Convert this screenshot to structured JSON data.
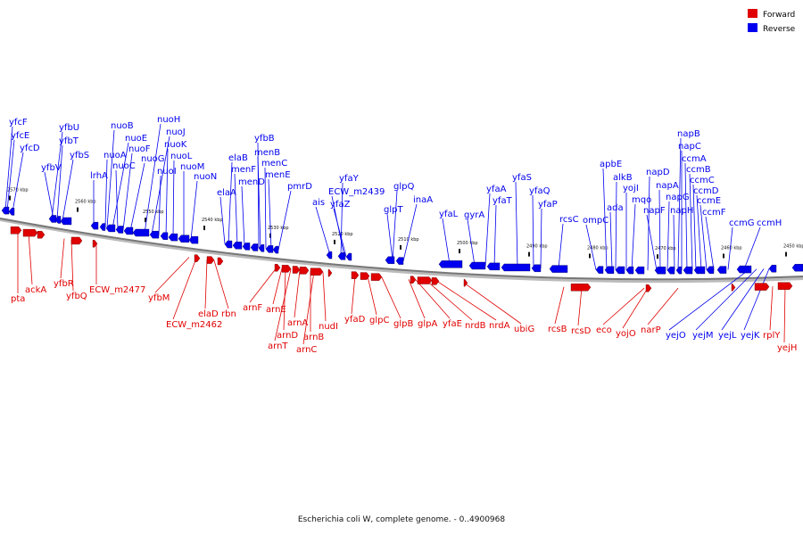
{
  "caption": "Escherichia coli W, complete genome. - 0..4900968",
  "colors": {
    "forward": "#e00000",
    "reverse": "#0000ee",
    "backbone": "#888888"
  },
  "legend": [
    {
      "key": "forward",
      "label": "Forward"
    },
    {
      "key": "reverse",
      "label": "Reverse"
    }
  ],
  "ticks": [
    "2570 kbp",
    "2560 kbp",
    "2550 kbp",
    "2540 kbp",
    "2530 kbp",
    "2520 kbp",
    "2510 kbp",
    "2500 kbp",
    "2490 kbp",
    "2480 kbp",
    "2470 kbp",
    "2460 kbp",
    "2450 kbp"
  ],
  "reverse_genes": [
    "yfcF",
    "yfcE",
    "yfcD",
    "yfbU",
    "yfbT",
    "yfbV",
    "yfbS",
    "lrhA",
    "nuoB",
    "nuoA",
    "nuoE",
    "nuoC",
    "nuoF",
    "nuoG",
    "nuoH",
    "nuoJ",
    "nuoI",
    "nuoK",
    "nuoL",
    "nuoM",
    "nuoN",
    "elaB",
    "elaA",
    "menF",
    "menD",
    "yfbB",
    "menB",
    "menC",
    "menE",
    "pmrD",
    "ais",
    "yfaY",
    "ECW_m2439",
    "yfaZ",
    "glpQ",
    "glpT",
    "inaA",
    "yfaL",
    "gyrA",
    "yfaA",
    "yfaT",
    "yfaS",
    "yfaQ",
    "yfaP",
    "rcsC",
    "ompC",
    "apbE",
    "alkB",
    "ada",
    "yojI",
    "mqo",
    "napD",
    "napF",
    "napA",
    "napG",
    "napH",
    "napB",
    "napC",
    "ccmA",
    "ccmB",
    "ccmC",
    "ccmD",
    "ccmE",
    "ccmF",
    "ccmG",
    "ccmH",
    "yejO",
    "yejM",
    "yejL",
    "yejK"
  ],
  "forward_genes": [
    "pta",
    "ackA",
    "yfbR",
    "yfbQ",
    "ECW_m2477",
    "yfbM",
    "ECW_m2462",
    "elaD",
    "rbn",
    "arnF",
    "arnE",
    "arnD",
    "arnT",
    "arnA",
    "arnB",
    "arnC",
    "nudI",
    "yfaD",
    "glpC",
    "glpB",
    "glpA",
    "yfaE",
    "nrdB",
    "nrdA",
    "ubiG",
    "rcsB",
    "rcsD",
    "eco",
    "yojO",
    "narP",
    "rplY",
    "yejH"
  ]
}
